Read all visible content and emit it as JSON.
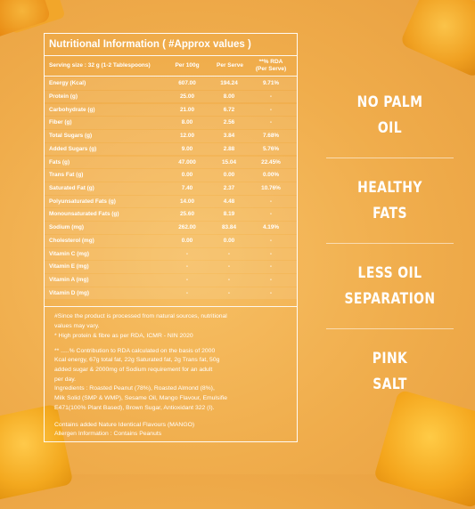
{
  "panel": {
    "title": "Nutritional Information ( #Approx values )",
    "headers": {
      "serving": "Serving size : 32 g (1-2 Tablespoons)",
      "per100": "Per 100g",
      "perServe": "Per Serve",
      "rda1": "**% RDA",
      "rda2": "(Per Serve)"
    },
    "rows": [
      {
        "name": "Energy (Kcal)",
        "per100": "607.00",
        "serve": "194.24",
        "rda": "9.71%"
      },
      {
        "name": "Protein (g)",
        "per100": "25.00",
        "serve": "8.00",
        "rda": "-"
      },
      {
        "name": "Carbohydrate (g)",
        "per100": "21.00",
        "serve": "6.72",
        "rda": "-"
      },
      {
        "name": "Fiber (g)",
        "per100": "8.00",
        "serve": "2.56",
        "rda": "-"
      },
      {
        "name": "Total Sugars (g)",
        "per100": "12.00",
        "serve": "3.84",
        "rda": "7.68%"
      },
      {
        "name": "Added Sugars (g)",
        "per100": "9.00",
        "serve": "2.88",
        "rda": "5.76%"
      },
      {
        "name": "Fats (g)",
        "per100": "47.000",
        "serve": "15.04",
        "rda": "22.45%"
      },
      {
        "name": "Trans Fat (g)",
        "per100": "0.00",
        "serve": "0.00",
        "rda": "0.00%"
      },
      {
        "name": "Saturated Fat (g)",
        "per100": "7.40",
        "serve": "2.37",
        "rda": "10.76%"
      },
      {
        "name": "Polyunsaturated Fats (g)",
        "per100": "14.00",
        "serve": "4.48",
        "rda": "-"
      },
      {
        "name": "Monounsaturated Fats (g)",
        "per100": "25.60",
        "serve": "8.19",
        "rda": "-"
      },
      {
        "name": "Sodium (mg)",
        "per100": "262.00",
        "serve": "83.84",
        "rda": "4.19%"
      },
      {
        "name": "Cholesterol (mg)",
        "per100": "0.00",
        "serve": "0.00",
        "rda": "-"
      },
      {
        "name": "Vitamin C (mg)",
        "per100": "-",
        "serve": "-",
        "rda": "-"
      },
      {
        "name": "Vitamin E (mg)",
        "per100": "-",
        "serve": "-",
        "rda": "-"
      },
      {
        "name": "Vitamin A (mg)",
        "per100": "-",
        "serve": "-",
        "rda": "-"
      },
      {
        "name": "Vitamin D (mg)",
        "per100": "-",
        "serve": "-",
        "rda": "-"
      }
    ],
    "notes": {
      "n1a": "#Since the product is processed from natural sources, nutritional",
      "n1b": "values may vary.",
      "n2": "* High protein & fibre as per RDA, ICMR - NIN 2020",
      "n3a": "** .....% Contribution to RDA calculated on the basis of 2000",
      "n3b": "Kcal energy, 67g total fat, 22g Saturated fat, 2g Trans fat, 50g",
      "n3c": "added sugar  &  2000mg  of Sodium requirement for an adult",
      "n3d": "per day.",
      "n4a": "Ingredients : Roasted Peanut (78%), Roasted Almond (8%),",
      "n4b": "Milk Solid (SMP & WMP), Sesame Oil, Mango Flavour, Emulsifie",
      "n4c": "E471(100% Plant Based), Brown Sugar, Antioxidant 322 (I).",
      "n5": "Contains added Nature Identical Flavours (MANGO)",
      "n6": "Allergen Information : Contains Peanuts"
    }
  },
  "features": [
    {
      "line1": "NO PALM",
      "line2": "OIL"
    },
    {
      "line1": "HEALTHY",
      "line2": "FATS"
    },
    {
      "line1": "LESS OIL",
      "line2": "SEPARATION"
    },
    {
      "line1": "PINK",
      "line2": "SALT"
    }
  ],
  "colors": {
    "background": "#f0ad4c",
    "text": "#ffffff",
    "mango": "#f4a51c"
  },
  "decor": [
    "mango-cube-image",
    "mango-cube-image",
    "mango-cube-image",
    "mango-cube-image"
  ]
}
